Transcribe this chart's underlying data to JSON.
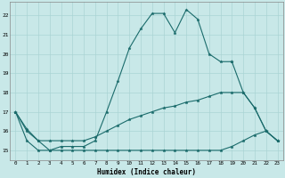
{
  "xlabel": "Humidex (Indice chaleur)",
  "xlim": [
    -0.5,
    23.5
  ],
  "ylim": [
    14.5,
    22.7
  ],
  "xticks": [
    0,
    1,
    2,
    3,
    4,
    5,
    6,
    7,
    8,
    9,
    10,
    11,
    12,
    13,
    14,
    15,
    16,
    17,
    18,
    19,
    20,
    21,
    22,
    23
  ],
  "yticks": [
    15,
    16,
    17,
    18,
    19,
    20,
    21,
    22
  ],
  "bg_color": "#c8e8e8",
  "line_color": "#1a6b6b",
  "grid_color": "#b0d8d8",
  "line1_x": [
    0,
    1,
    2,
    3,
    4,
    5,
    6,
    7,
    8,
    9,
    10,
    11,
    12,
    13,
    14,
    15,
    16,
    17,
    18,
    19
  ],
  "line1_y": [
    17,
    16,
    15.5,
    15,
    15.2,
    15.2,
    15.2,
    15.5,
    17,
    18.6,
    20.3,
    21.3,
    22.1,
    22.1,
    21.1,
    22.3,
    21.8,
    20,
    19.6,
    19.6
  ],
  "line2_x": [
    19,
    20,
    21,
    22,
    23
  ],
  "line2_y": [
    19.6,
    18,
    17.2,
    16,
    15.5
  ],
  "line3_x": [
    0,
    1,
    2,
    3,
    4,
    5,
    6,
    7,
    8,
    9,
    10,
    11,
    12,
    13,
    14,
    15,
    16,
    17,
    18,
    19,
    20,
    21,
    22,
    23
  ],
  "line3_y": [
    17,
    16.1,
    15.5,
    15.5,
    15.5,
    15.5,
    15.5,
    15.7,
    16.0,
    16.3,
    16.6,
    16.8,
    17.0,
    17.2,
    17.3,
    17.5,
    17.6,
    17.8,
    18.0,
    18.0,
    18.0,
    17.2,
    16.0,
    15.5
  ],
  "line4_x": [
    0,
    1,
    2,
    3,
    4,
    5,
    6,
    7,
    8,
    9,
    10,
    11,
    12,
    13,
    14,
    15,
    16,
    17,
    18,
    19,
    20,
    21,
    22,
    23
  ],
  "line4_y": [
    17,
    15.5,
    15.0,
    15.0,
    15.0,
    15.0,
    15.0,
    15.0,
    15.0,
    15.0,
    15.0,
    15.0,
    15.0,
    15.0,
    15.0,
    15.0,
    15.0,
    15.0,
    15.0,
    15.2,
    15.5,
    15.8,
    16.0,
    15.5
  ],
  "figsize": [
    3.2,
    2.0
  ],
  "dpi": 100
}
